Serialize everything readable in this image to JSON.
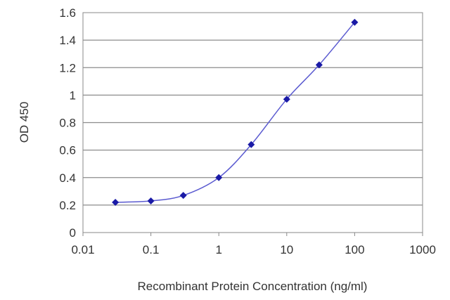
{
  "chart_data": {
    "type": "line",
    "xlabel": "Recombinant Protein Concentration (ng/ml)",
    "ylabel": "OD 450",
    "x_scale": "log",
    "xlim": [
      0.01,
      1000
    ],
    "ylim": [
      0,
      1.6
    ],
    "x_ticks": [
      0.01,
      0.1,
      1,
      10,
      100,
      1000
    ],
    "x_tick_labels": [
      "0.01",
      "0.1",
      "1",
      "10",
      "100",
      "1000"
    ],
    "y_ticks": [
      0,
      0.2,
      0.4,
      0.6,
      0.8,
      1,
      1.2,
      1.4,
      1.6
    ],
    "y_tick_labels": [
      "0",
      "0.2",
      "0.4",
      "0.6",
      "0.8",
      "1",
      "1.2",
      "1.4",
      "1.6"
    ],
    "grid": "horizontal",
    "series": [
      {
        "x": [
          0.03,
          0.1,
          0.3,
          1,
          3,
          10,
          30,
          100
        ],
        "y": [
          0.22,
          0.23,
          0.27,
          0.4,
          0.64,
          0.97,
          1.22,
          1.53
        ],
        "color": "#1a1aa6",
        "marker": "diamond"
      }
    ]
  }
}
